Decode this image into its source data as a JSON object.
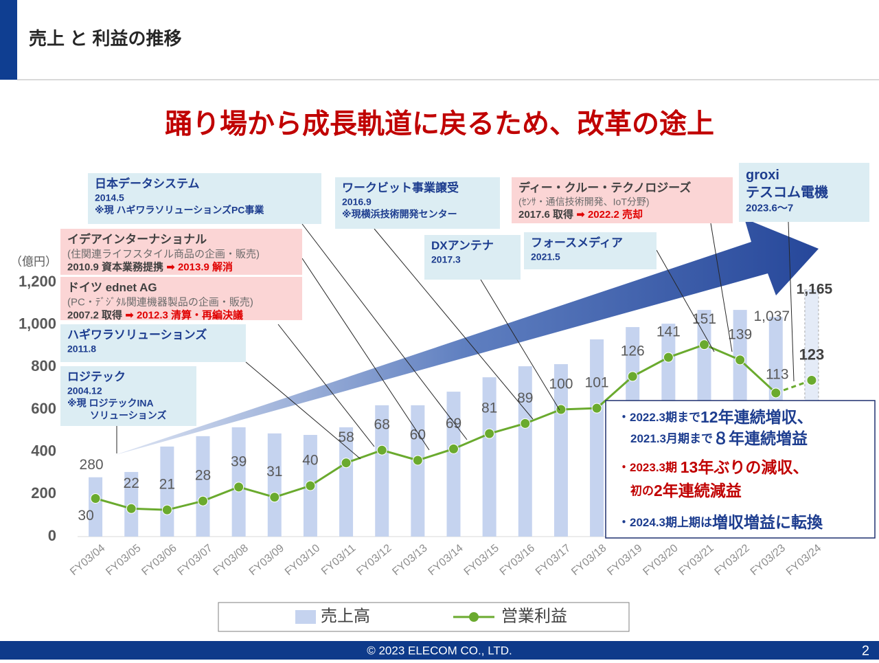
{
  "header": {
    "title": "売上 と 利益の推移"
  },
  "footer": {
    "copyright": "© 2023 ELECOM CO., LTD.",
    "page": "2"
  },
  "chart_data": {
    "type": "bar_line",
    "title": "踊り場から成長軌道に戻るため、改革の途上",
    "y_unit": "（億円）",
    "categories": [
      "FY03/04",
      "FY03/05",
      "FY03/06",
      "FY03/07",
      "FY03/08",
      "FY03/09",
      "FY03/10",
      "FY03/11",
      "FY03/12",
      "FY03/13",
      "FY03/14",
      "FY03/15",
      "FY03/16",
      "FY03/17",
      "FY03/18",
      "FY03/19",
      "FY03/20",
      "FY03/21",
      "FY03/22",
      "FY03/23",
      "FY03/24"
    ],
    "series": [
      {
        "name": "売上高",
        "type": "bar",
        "color": "#c5d3ef",
        "values": [
          280,
          305,
          425,
          474,
          516,
          487,
          480,
          516,
          620,
          620,
          684,
          752,
          804,
          814,
          931,
          989,
          1005,
          1070,
          1070,
          1037,
          1165
        ],
        "value_labels": [
          "280",
          null,
          null,
          null,
          null,
          null,
          null,
          null,
          null,
          null,
          null,
          null,
          null,
          null,
          null,
          null,
          null,
          null,
          null,
          "1,037",
          "1,165"
        ]
      },
      {
        "name": "営業利益",
        "type": "line",
        "axis": "y2",
        "color": "#6aaa2e",
        "values": [
          30,
          22,
          21,
          28,
          39,
          31,
          40,
          58,
          68,
          60,
          69,
          81,
          89,
          100,
          101,
          126,
          141,
          151,
          139,
          113,
          123
        ]
      }
    ],
    "ylim": [
      0,
      1200
    ],
    "yticks": [
      0,
      200,
      400,
      600,
      800,
      {
        "value": 1000,
        "label": "1,000"
      },
      {
        "value": 1200,
        "label": "1,200"
      }
    ],
    "y2lim": [
      0,
      200
    ],
    "grid": false,
    "last_forecast": true,
    "annotations": [
      {
        "fill": "#dcedf3",
        "lines": [
          [
            {
              "text": "日本データシステム",
              "color": "#1d3d8f"
            }
          ],
          [
            {
              "text": "2014.5",
              "color": "#1d3d8f"
            }
          ],
          [
            {
              "text": "※現 ハギワラソリューションズPC事業",
              "color": "#1d3d8f"
            }
          ]
        ]
      },
      {
        "fill": "#fbd5d5",
        "lines": [
          [
            {
              "text": "イデアインターナショナル",
              "color": "#404040"
            }
          ],
          [
            {
              "text": "(住関連ライフスタイル商品の企画・販売)",
              "color": "#6b6b6b"
            }
          ],
          [
            {
              "text": "2010.9 資本業務提携 ",
              "color": "#404040"
            },
            {
              "text": "➡ 2013.9 解消",
              "color": "#e00000"
            }
          ]
        ]
      },
      {
        "fill": "#fbd5d5",
        "lines": [
          [
            {
              "text": "ドイツ ednet AG",
              "color": "#404040"
            }
          ],
          [
            {
              "text": "(PC・ﾃﾞｼﾞﾀﾙ関連機器製品の企画・販売)",
              "color": "#6b6b6b"
            }
          ],
          [
            {
              "text": "2007.2 取得 ",
              "color": "#404040"
            },
            {
              "text": "➡ 2012.3 清算・再編決議",
              "color": "#e00000"
            }
          ]
        ]
      },
      {
        "fill": "#dcedf3",
        "lines": [
          [
            {
              "text": "ハギワラソリューションズ",
              "color": "#1d3d8f"
            }
          ],
          [
            {
              "text": "2011.8",
              "color": "#1d3d8f"
            }
          ]
        ]
      },
      {
        "fill": "#dcedf3",
        "lines": [
          [
            {
              "text": "ロジテック",
              "color": "#1d3d8f"
            }
          ],
          [
            {
              "text": "2004.12",
              "color": "#1d3d8f"
            }
          ],
          [
            {
              "text": "※現 ロジテックINA",
              "color": "#1d3d8f"
            }
          ],
          [
            {
              "text": "ソリューションズ",
              "color": "#1d3d8f"
            }
          ]
        ]
      },
      {
        "fill": "#dcedf3",
        "lines": [
          [
            {
              "text": "ワークビット事業譲受",
              "color": "#1d3d8f"
            }
          ],
          [
            {
              "text": "2016.9",
              "color": "#1d3d8f"
            }
          ],
          [
            {
              "text": "※現横浜技術開発センター",
              "color": "#1d3d8f"
            }
          ]
        ]
      },
      {
        "fill": "#dcedf3",
        "lines": [
          [
            {
              "text": "DXアンテナ",
              "color": "#1d3d8f"
            }
          ],
          [
            {
              "text": "2017.3",
              "color": "#1d3d8f"
            }
          ]
        ]
      },
      {
        "fill": "#dcedf3",
        "lines": [
          [
            {
              "text": "フォースメディア",
              "color": "#1d3d8f"
            }
          ],
          [
            {
              "text": "2021.5",
              "color": "#1d3d8f"
            }
          ]
        ]
      },
      {
        "fill": "#fbd5d5",
        "lines": [
          [
            {
              "text": "ディー・クルー・テクノロジーズ",
              "color": "#404040"
            }
          ],
          [
            {
              "text": "(ｾﾝｻ・通信技術開発、IoT分野)",
              "color": "#6b6b6b"
            }
          ],
          [
            {
              "text": "2017.6 取得 ",
              "color": "#404040"
            },
            {
              "text": "➡ 2022.2 売却",
              "color": "#e00000"
            }
          ]
        ]
      },
      {
        "fill": "#dcedf3",
        "lines": [
          [
            {
              "text": "groxi",
              "color": "#1d3d8f"
            }
          ],
          [
            {
              "text": "テスコム電機",
              "color": "#1d3d8f"
            }
          ],
          [
            {
              "text": "2023.6～7",
              "color": "#1d3d8f"
            }
          ]
        ]
      }
    ],
    "highlights": [
      [
        {
          "text": "・2022.3期まで",
          "color": "#1d3d8f"
        },
        {
          "text": "12年連続増収、",
          "color": "#1d3d8f"
        }
      ],
      [
        {
          "text": "2021.3月期まで",
          "color": "#1d3d8f"
        },
        {
          "text": "８年連続増益",
          "color": "#1d3d8f"
        }
      ],
      [
        {
          "text": "・2023.3期 ",
          "color": "#c00000"
        },
        {
          "text": "13年ぶりの減収、",
          "color": "#c00000"
        }
      ],
      [
        {
          "text": "初の",
          "color": "#c00000"
        },
        {
          "text": "2年連続減益",
          "color": "#c00000"
        }
      ],
      [
        {
          "text": "・2024.3期上期は",
          "color": "#1d3d8f"
        },
        {
          "text": "増収増益に転換",
          "color": "#1d3d8f"
        }
      ]
    ]
  }
}
